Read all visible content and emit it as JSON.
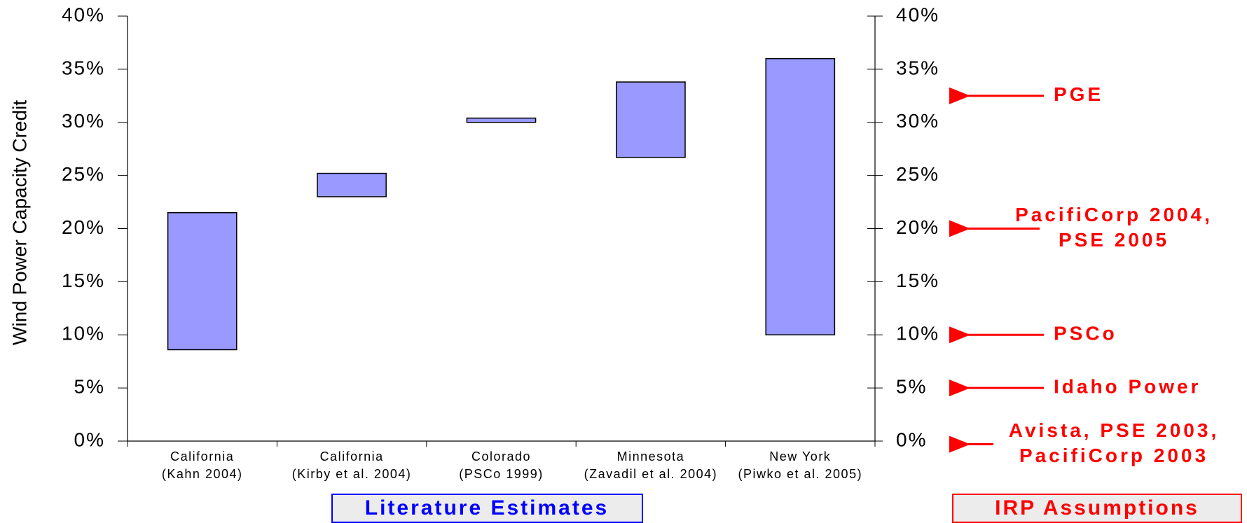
{
  "chart_data": {
    "type": "floating_bar",
    "y_label": "Wind Power Capacity Credit",
    "categories": [
      [
        "California",
        "(Kahn 2004)"
      ],
      [
        "California",
        "(Kirby et al. 2004)"
      ],
      [
        "Colorado",
        "(PSCo 1999)"
      ],
      [
        "Minnesota",
        "(Zavadil et al. 2004)"
      ],
      [
        "New York",
        "(Piwko et al. 2005)"
      ]
    ],
    "low": [
      8.6,
      23,
      30,
      26.7,
      10
    ],
    "high": [
      21.5,
      25.2,
      30.4,
      33.8,
      36
    ],
    "color": "#9999ff",
    "ylim": [
      0,
      40
    ],
    "yticks": [
      {
        "value": 0,
        "label": "0%"
      },
      {
        "value": 5,
        "label": "5%"
      },
      {
        "value": 10,
        "label": "10%"
      },
      {
        "value": 15,
        "label": "15%"
      },
      {
        "value": 20,
        "label": "20%"
      },
      {
        "value": 25,
        "label": "25%"
      },
      {
        "value": 30,
        "label": "30%"
      },
      {
        "value": 35,
        "label": "35%"
      },
      {
        "value": 40,
        "label": "40%"
      }
    ],
    "y2lim": [
      0,
      40
    ],
    "y2ticks": [
      {
        "value": 0,
        "label": "0%"
      },
      {
        "value": 5,
        "label": "5%"
      },
      {
        "value": 10,
        "label": "10%"
      },
      {
        "value": 15,
        "label": "15%"
      },
      {
        "value": 20,
        "label": "20%"
      },
      {
        "value": 25,
        "label": "25%"
      },
      {
        "value": 30,
        "label": "30%"
      },
      {
        "value": 35,
        "label": "35%"
      },
      {
        "value": 40,
        "label": "40%"
      }
    ],
    "annotations": [
      {
        "value": 32.5,
        "lines": [
          "PGE"
        ]
      },
      {
        "value": 20,
        "lines": [
          "PacifiCorp 2004,",
          "PSE 2005"
        ]
      },
      {
        "value": 10,
        "lines": [
          "PSCo"
        ]
      },
      {
        "value": 5,
        "lines": [
          "Idaho Power"
        ]
      },
      {
        "value": -0.3,
        "lines": [
          "Avista, PSE 2003,",
          "PacifiCorp 2003"
        ]
      }
    ],
    "group_labels": {
      "left": "Literature Estimates",
      "right": "IRP Assumptions"
    }
  }
}
